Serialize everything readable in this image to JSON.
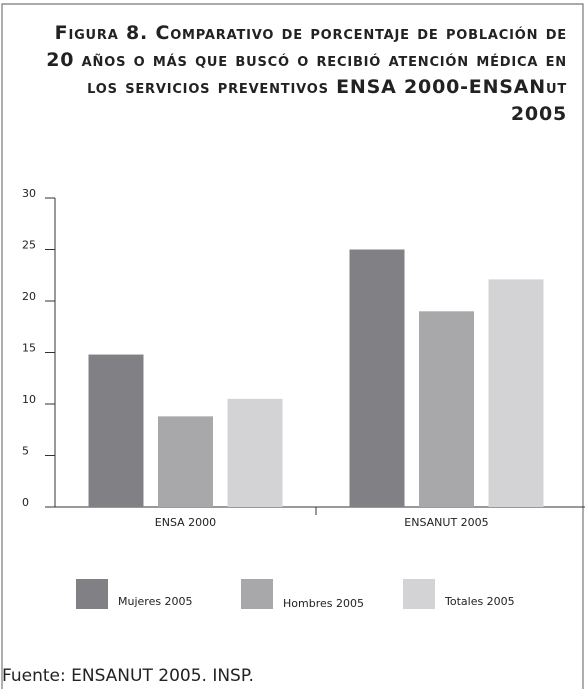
{
  "chart_data": {
    "type": "bar",
    "title": "Figura 8. Comparativo de porcentaje de población de 20 años o más que buscó o recibió atención médica en los servicios preventivos ENSA 2000-ENSANut 2005",
    "categories": [
      "ENSA 2000",
      "ENSANUT 2005"
    ],
    "series": [
      {
        "name": "Mujeres 2005",
        "color": "#808085",
        "values": [
          14.8,
          25
        ]
      },
      {
        "name": "Hombres 2005",
        "color": "#a8a8ab",
        "values": [
          8.8,
          19
        ]
      },
      {
        "name": "Totales 2005",
        "color": "#d3d3d5",
        "values": [
          10.5,
          22.1
        ]
      }
    ],
    "ylim": [
      0,
      30
    ],
    "yticks": [
      0,
      5,
      10,
      15,
      20,
      25,
      30
    ],
    "source": "Fuente: ENSANUT  2005. INSP."
  }
}
